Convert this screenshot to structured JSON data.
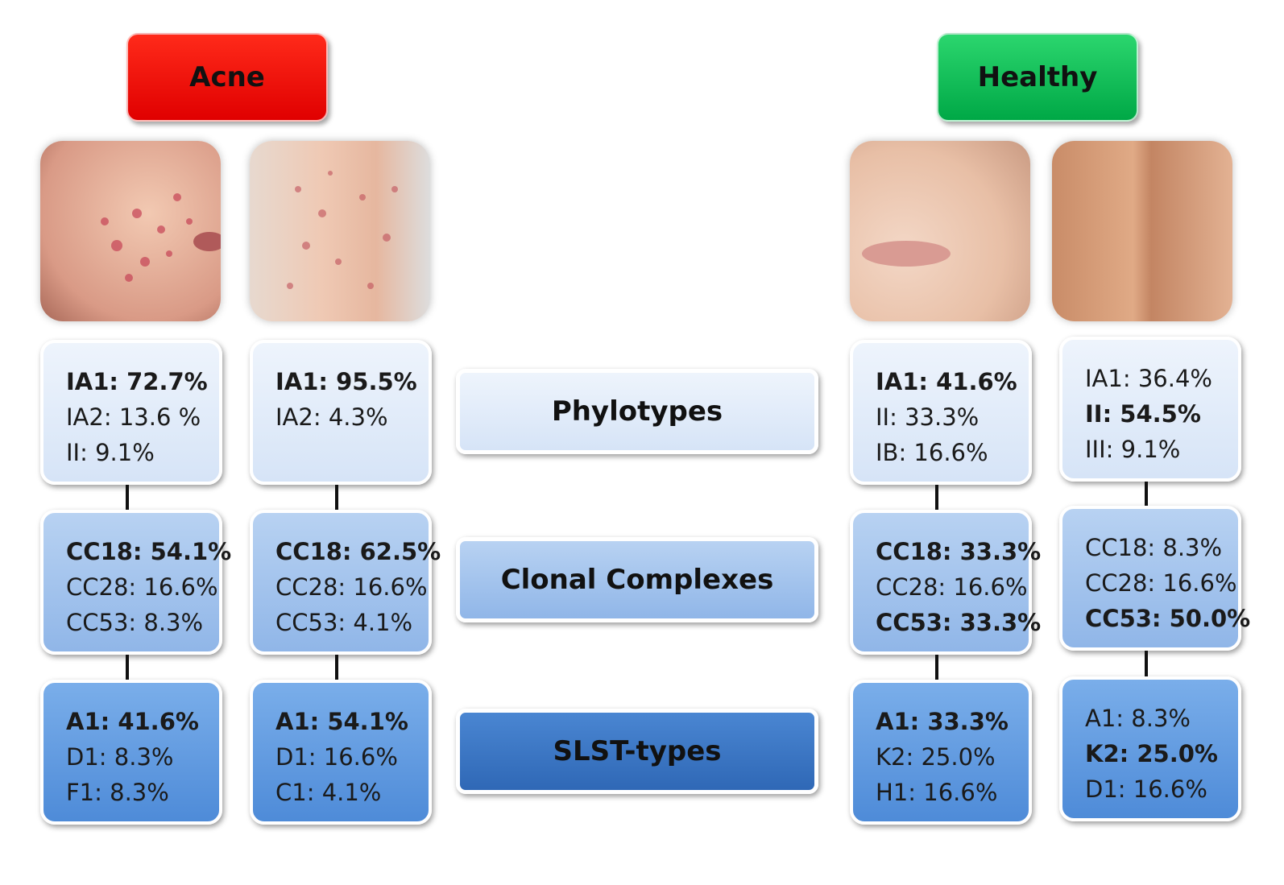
{
  "groups": [
    {
      "label": "Acne"
    },
    {
      "label": "Healthy"
    }
  ],
  "levels": [
    {
      "label": "Phylotypes"
    },
    {
      "label": "Clonal Complexes"
    },
    {
      "label": "SLST-types"
    }
  ],
  "columns": [
    {
      "levels": [
        {
          "lines": [
            {
              "text": "IA1: 72.7%",
              "bold": true
            },
            {
              "text": "IA2: 13.6 %",
              "bold": false
            },
            {
              "text": "II: 9.1%",
              "bold": false
            }
          ]
        },
        {
          "lines": [
            {
              "text": "CC18: 54.1%",
              "bold": true
            },
            {
              "text": "CC28: 16.6%",
              "bold": false
            },
            {
              "text": "CC53: 8.3%",
              "bold": false
            }
          ]
        },
        {
          "lines": [
            {
              "text": "A1: 41.6%",
              "bold": true
            },
            {
              "text": "D1: 8.3%",
              "bold": false
            },
            {
              "text": "F1: 8.3%",
              "bold": false
            }
          ]
        }
      ]
    },
    {
      "levels": [
        {
          "lines": [
            {
              "text": "IA1: 95.5%",
              "bold": true
            },
            {
              "text": "IA2: 4.3%",
              "bold": false
            }
          ]
        },
        {
          "lines": [
            {
              "text": "CC18: 62.5%",
              "bold": true
            },
            {
              "text": "CC28: 16.6%",
              "bold": false
            },
            {
              "text": "CC53: 4.1%",
              "bold": false
            }
          ]
        },
        {
          "lines": [
            {
              "text": "A1: 54.1%",
              "bold": true
            },
            {
              "text": "D1: 16.6%",
              "bold": false
            },
            {
              "text": "C1: 4.1%",
              "bold": false
            }
          ]
        }
      ]
    },
    {
      "levels": [
        {
          "lines": [
            {
              "text": "IA1: 41.6%",
              "bold": true
            },
            {
              "text": "II: 33.3%",
              "bold": false
            },
            {
              "text": "IB: 16.6%",
              "bold": false
            }
          ]
        },
        {
          "lines": [
            {
              "text": "CC18: 33.3%",
              "bold": true
            },
            {
              "text": "CC28: 16.6%",
              "bold": false
            },
            {
              "text": "CC53: 33.3%",
              "bold": true
            }
          ]
        },
        {
          "lines": [
            {
              "text": "A1: 33.3%",
              "bold": true
            },
            {
              "text": "K2: 25.0%",
              "bold": false
            },
            {
              "text": "H1: 16.6%",
              "bold": false
            }
          ]
        }
      ]
    },
    {
      "levels": [
        {
          "lines": [
            {
              "text": "IA1: 36.4%",
              "bold": false
            },
            {
              "text": "II: 54.5%",
              "bold": true
            },
            {
              "text": "III: 9.1%",
              "bold": false
            }
          ]
        },
        {
          "lines": [
            {
              "text": "CC18: 8.3%",
              "bold": false
            },
            {
              "text": "CC28: 16.6%",
              "bold": false
            },
            {
              "text": "CC53: 50.0%",
              "bold": true
            }
          ]
        },
        {
          "lines": [
            {
              "text": "A1: 8.3%",
              "bold": false
            },
            {
              "text": "K2: 25.0%",
              "bold": true
            },
            {
              "text": "D1: 16.6%",
              "bold": false
            }
          ]
        }
      ]
    }
  ]
}
